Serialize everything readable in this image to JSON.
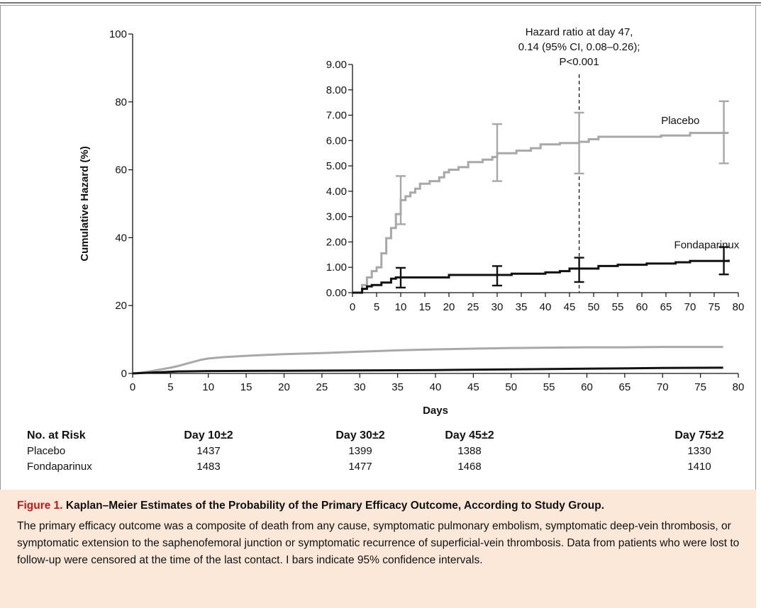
{
  "chart_data": [
    {
      "type": "line",
      "title": "",
      "xlabel": "Days",
      "ylabel": "Cumulative Hazard (%)",
      "xlim": [
        0,
        80
      ],
      "ylim": [
        0,
        100
      ],
      "x_ticks": [
        "0",
        "5",
        "10",
        "15",
        "20",
        "25",
        "30",
        "35",
        "40",
        "45",
        "50",
        "55",
        "60",
        "65",
        "70",
        "75",
        "80"
      ],
      "y_ticks": [
        "0",
        "20",
        "40",
        "60",
        "80",
        "100"
      ],
      "series": [
        {
          "color": "#a8a8a8",
          "points": [
            [
              0,
              0
            ],
            [
              1,
              0.2
            ],
            [
              2,
              0.5
            ],
            [
              3,
              0.9
            ],
            [
              4,
              1.3
            ],
            [
              5,
              1.7
            ],
            [
              6,
              2.2
            ],
            [
              7,
              2.8
            ],
            [
              8,
              3.4
            ],
            [
              9,
              4.0
            ],
            [
              10,
              4.4
            ],
            [
              12,
              4.8
            ],
            [
              15,
              5.2
            ],
            [
              20,
              5.7
            ],
            [
              25,
              6.0
            ],
            [
              30,
              6.4
            ],
            [
              35,
              6.8
            ],
            [
              40,
              7.1
            ],
            [
              45,
              7.3
            ],
            [
              50,
              7.5
            ],
            [
              55,
              7.6
            ],
            [
              60,
              7.7
            ],
            [
              65,
              7.7
            ],
            [
              70,
              7.8
            ],
            [
              75,
              7.8
            ],
            [
              78,
              7.8
            ]
          ]
        },
        {
          "color": "#111111",
          "points": [
            [
              0,
              0
            ],
            [
              2,
              0.2
            ],
            [
              4,
              0.4
            ],
            [
              6,
              0.6
            ],
            [
              10,
              0.7
            ],
            [
              20,
              0.8
            ],
            [
              30,
              0.9
            ],
            [
              40,
              1.0
            ],
            [
              50,
              1.2
            ],
            [
              60,
              1.4
            ],
            [
              70,
              1.6
            ],
            [
              78,
              1.7
            ]
          ]
        }
      ]
    },
    {
      "type": "line",
      "title": "",
      "xlim": [
        0,
        80
      ],
      "ylim": [
        0,
        9
      ],
      "x_ticks": [
        "0",
        "5",
        "10",
        "15",
        "20",
        "25",
        "30",
        "35",
        "40",
        "45",
        "50",
        "55",
        "60",
        "65",
        "70",
        "75",
        "80"
      ],
      "y_ticks": [
        "0.00",
        "1.00",
        "2.00",
        "3.00",
        "4.00",
        "5.00",
        "6.00",
        "7.00",
        "8.00",
        "9.00"
      ],
      "annotation": {
        "lines": [
          "Hazard ratio at day 47,",
          "0.14 (95% CI, 0.08–0.26);",
          "P<0.001"
        ],
        "x": 47
      },
      "series": [
        {
          "name": "Placebo",
          "color": "#a8a8a8",
          "steps": [
            [
              0,
              0
            ],
            [
              2,
              0.3
            ],
            [
              3,
              0.6
            ],
            [
              4,
              0.85
            ],
            [
              5,
              1.0
            ],
            [
              6,
              1.55
            ],
            [
              7,
              2.15
            ],
            [
              8,
              2.55
            ],
            [
              9,
              3.1
            ],
            [
              10,
              3.65
            ],
            [
              11,
              3.8
            ],
            [
              12,
              3.95
            ],
            [
              13,
              4.1
            ],
            [
              14,
              4.3
            ],
            [
              16,
              4.4
            ],
            [
              18,
              4.55
            ],
            [
              19,
              4.75
            ],
            [
              20,
              4.85
            ],
            [
              22,
              4.95
            ],
            [
              24,
              5.15
            ],
            [
              27,
              5.25
            ],
            [
              29,
              5.35
            ],
            [
              30,
              5.5
            ],
            [
              34,
              5.6
            ],
            [
              37,
              5.7
            ],
            [
              39,
              5.85
            ],
            [
              43,
              5.9
            ],
            [
              47,
              5.95
            ],
            [
              49,
              6.05
            ],
            [
              51,
              6.15
            ],
            [
              64,
              6.2
            ],
            [
              70,
              6.3
            ],
            [
              78,
              6.3
            ]
          ],
          "error_bars": [
            {
              "x": 10,
              "y": 3.65,
              "low": 2.7,
              "high": 4.6
            },
            {
              "x": 30,
              "y": 5.5,
              "low": 4.4,
              "high": 6.65
            },
            {
              "x": 47,
              "y": 5.95,
              "low": 4.7,
              "high": 7.1
            },
            {
              "x": 77,
              "y": 6.3,
              "low": 5.1,
              "high": 7.55
            }
          ]
        },
        {
          "name": "Fondaparinux",
          "color": "#111111",
          "steps": [
            [
              0,
              0
            ],
            [
              2,
              0.15
            ],
            [
              3,
              0.25
            ],
            [
              4,
              0.3
            ],
            [
              6,
              0.4
            ],
            [
              8,
              0.55
            ],
            [
              9,
              0.6
            ],
            [
              20,
              0.7
            ],
            [
              33,
              0.75
            ],
            [
              40,
              0.8
            ],
            [
              43,
              0.85
            ],
            [
              45,
              0.95
            ],
            [
              51,
              1.05
            ],
            [
              55,
              1.1
            ],
            [
              61,
              1.15
            ],
            [
              67,
              1.2
            ],
            [
              70,
              1.25
            ],
            [
              78,
              1.3
            ]
          ],
          "error_bars": [
            {
              "x": 10,
              "y": 0.6,
              "low": 0.2,
              "high": 0.98
            },
            {
              "x": 30,
              "y": 0.7,
              "low": 0.28,
              "high": 1.05
            },
            {
              "x": 47,
              "y": 0.95,
              "low": 0.42,
              "high": 1.38
            },
            {
              "x": 77,
              "y": 1.3,
              "low": 0.72,
              "high": 1.8
            }
          ]
        }
      ]
    }
  ],
  "risk_table": {
    "header": "No. at Risk",
    "columns": [
      {
        "label": "Day 10±2",
        "day": 10
      },
      {
        "label": "Day 30±2",
        "day": 30
      },
      {
        "label": "Day 45±2",
        "day": 45
      },
      {
        "label": "Day 75±2",
        "day": 75
      }
    ],
    "rows": [
      {
        "label": "Placebo",
        "values": [
          "1437",
          "1399",
          "1388",
          "1330"
        ]
      },
      {
        "label": "Fondaparinux",
        "values": [
          "1483",
          "1477",
          "1468",
          "1410"
        ]
      }
    ]
  },
  "caption": {
    "prefix": "Figure 1.",
    "title": "Kaplan–Meier Estimates of the Probability of the Primary Efficacy Outcome, According to Study Group.",
    "body": "The primary efficacy outcome was a composite of death from any cause, symptomatic pulmonary embolism, symptomatic deep-vein thrombosis, or symptomatic extension to the saphenofemoral junction or symptomatic recurrence of superficial-vein thrombosis. Data from patients who were lost to follow-up were censored at the time of the last contact. I bars indicate 95% confidence intervals."
  },
  "colors": {
    "placebo": "#a8a8a8",
    "fondaparinux": "#111111",
    "caption_background": "#fbe8d8",
    "figure_label": "#c4161c"
  }
}
